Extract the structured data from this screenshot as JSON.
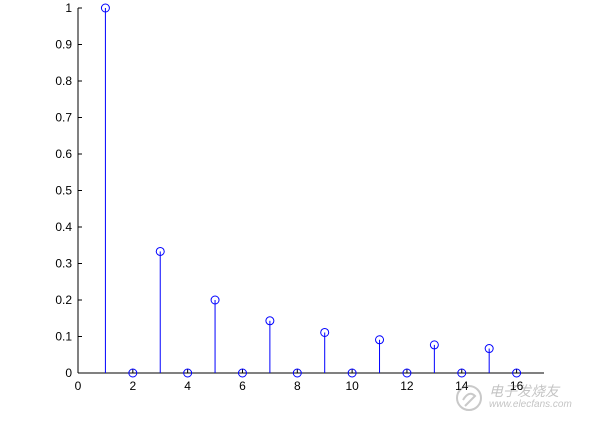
{
  "chart_data": {
    "type": "stem",
    "x": [
      1,
      2,
      3,
      4,
      5,
      6,
      7,
      8,
      9,
      10,
      11,
      12,
      13,
      14,
      15,
      16
    ],
    "y": [
      1,
      0,
      0.333,
      0,
      0.2,
      0,
      0.143,
      0,
      0.111,
      0,
      0.091,
      0,
      0.077,
      0,
      0.067,
      0
    ],
    "xlim": [
      0,
      17
    ],
    "ylim": [
      0,
      1
    ],
    "xticks": [
      0,
      2,
      4,
      6,
      8,
      10,
      12,
      14,
      16
    ],
    "xtick_labels": [
      "0",
      "2",
      "4",
      "6",
      "8",
      "10",
      "12",
      "14",
      "16"
    ],
    "yticks": [
      0,
      0.1,
      0.2,
      0.3,
      0.4,
      0.5,
      0.6,
      0.7,
      0.8,
      0.9,
      1
    ],
    "ytick_labels": [
      "0",
      "0.1",
      "0.2",
      "0.3",
      "0.4",
      "0.5",
      "0.6",
      "0.7",
      "0.8",
      "0.9",
      "1"
    ],
    "title": "",
    "xlabel": "",
    "ylabel": "",
    "grid": false,
    "colors": {
      "stem": "#0000ff",
      "axis": "#000000"
    }
  },
  "watermark": {
    "chinese_text": "电子发烧友",
    "site_text": "www.elecfans.com"
  }
}
